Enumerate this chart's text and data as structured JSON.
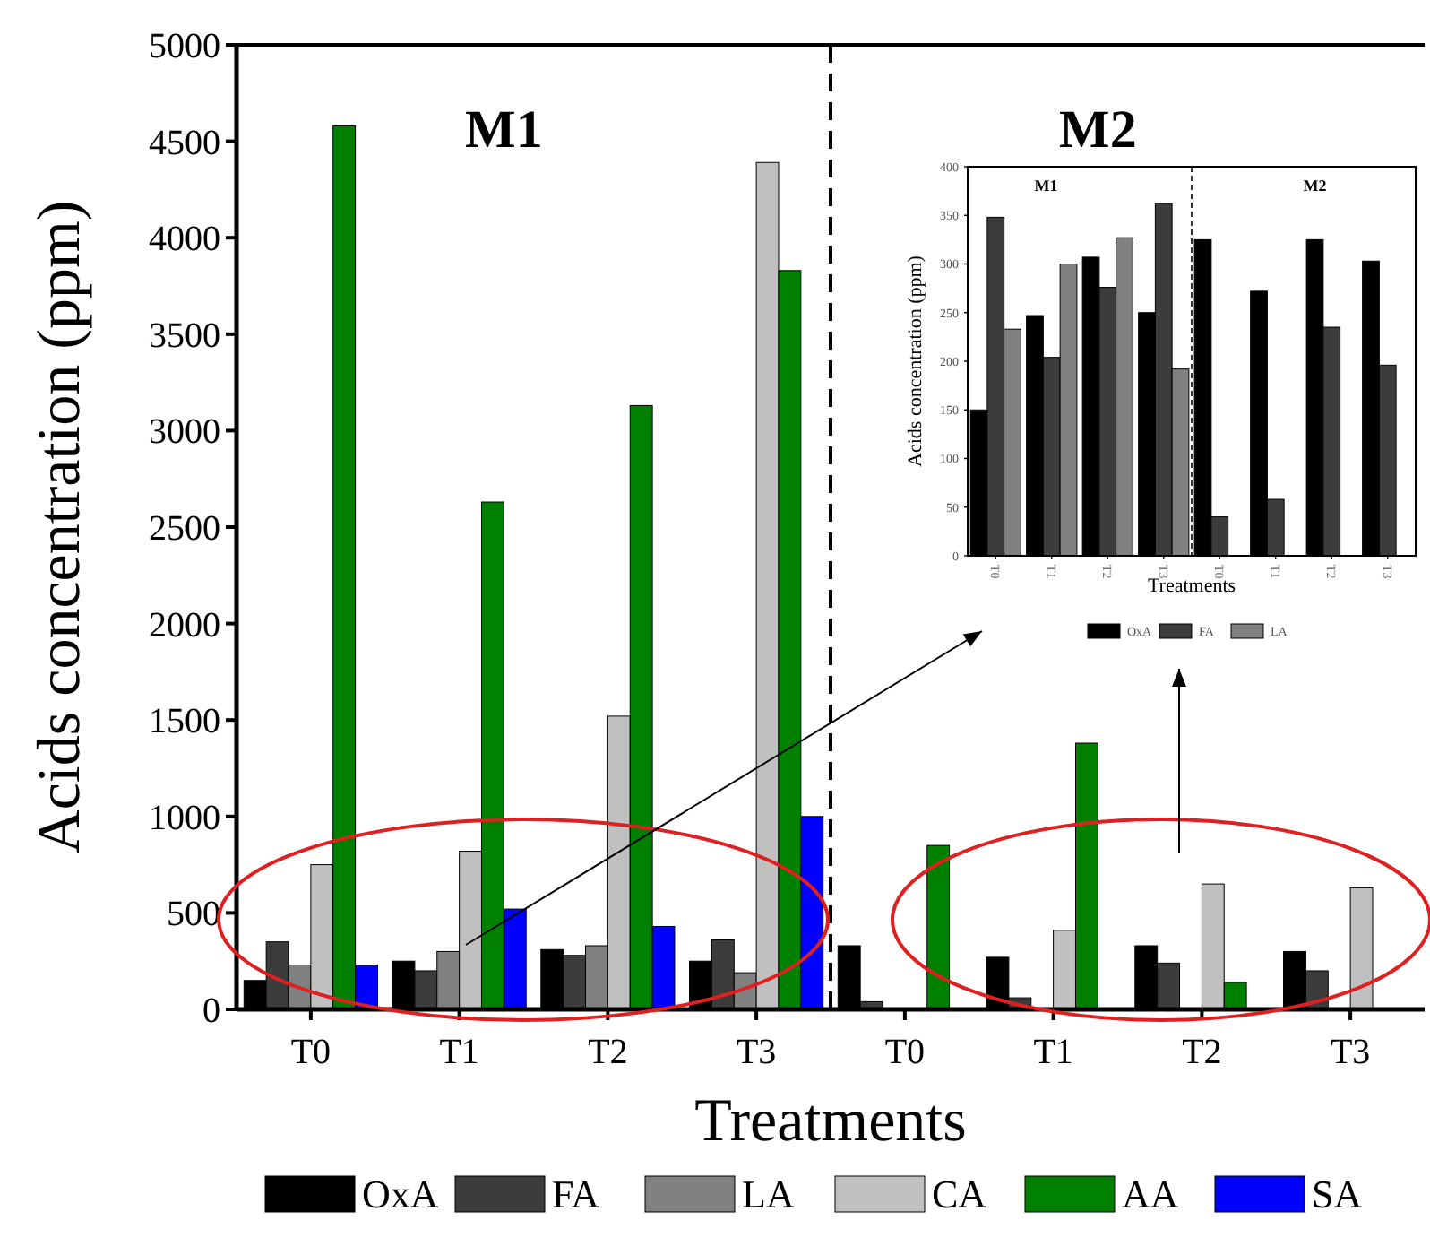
{
  "chart_data": [
    {
      "type": "bar",
      "xlabel": "Treatments",
      "ylabel": "Acids concentration (ppm)",
      "categories": [
        "T0",
        "T1",
        "T2",
        "T3",
        "T0",
        "T1",
        "T2",
        "T3"
      ],
      "ylim": [
        0,
        5000
      ],
      "yticks": [
        0,
        500,
        1000,
        1500,
        2000,
        2500,
        3000,
        3500,
        4000,
        4500,
        5000
      ],
      "legend": "bottom",
      "annotations": [
        "M1",
        "M2"
      ],
      "series": [
        {
          "name": "OxA",
          "color": "#000000",
          "values": [
            150,
            250,
            310,
            250,
            330,
            270,
            330,
            300
          ]
        },
        {
          "name": "FA",
          "color": "#3c3c3c",
          "values": [
            350,
            200,
            280,
            360,
            40,
            60,
            240,
            200
          ]
        },
        {
          "name": "LA",
          "color": "#808080",
          "values": [
            230,
            300,
            330,
            190,
            null,
            null,
            null,
            null
          ]
        },
        {
          "name": "CA",
          "color": "#c0c0c0",
          "values": [
            750,
            820,
            1520,
            4390,
            null,
            410,
            650,
            630
          ]
        },
        {
          "name": "AA",
          "color": "#008000",
          "values": [
            4580,
            2630,
            3130,
            3830,
            850,
            1380,
            140,
            null
          ]
        },
        {
          "name": "SA",
          "color": "#0000ff",
          "values": [
            230,
            520,
            430,
            1000,
            null,
            null,
            null,
            null
          ]
        }
      ]
    },
    {
      "type": "bar",
      "xlabel": "Treatments",
      "ylabel": "Acids concentration (ppm)",
      "categories": [
        "T0",
        "T1",
        "T2",
        "T3",
        "T0",
        "T1",
        "T2",
        "T3"
      ],
      "ylim": [
        0,
        400
      ],
      "yticks": [
        0,
        50,
        100,
        150,
        200,
        250,
        300,
        350,
        400
      ],
      "legend": "bottom",
      "annotations": [
        "M1",
        "M2"
      ],
      "series": [
        {
          "name": "OxA",
          "color": "#000000",
          "values": [
            150,
            247,
            307,
            250,
            325,
            272,
            325,
            303
          ]
        },
        {
          "name": "FA",
          "color": "#3c3c3c",
          "values": [
            348,
            204,
            276,
            362,
            40,
            58,
            235,
            196
          ]
        },
        {
          "name": "LA",
          "color": "#808080",
          "values": [
            233,
            300,
            327,
            192,
            null,
            null,
            null,
            null
          ]
        }
      ]
    }
  ]
}
